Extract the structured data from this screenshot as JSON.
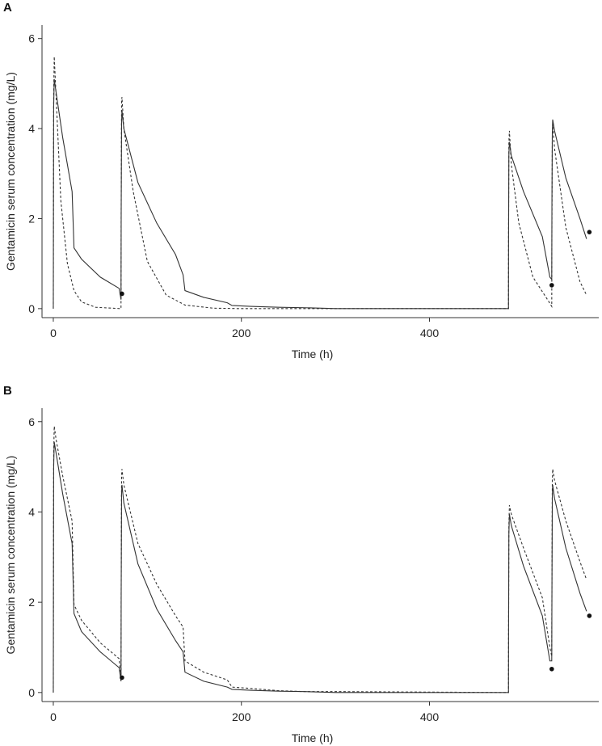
{
  "chart_data": [
    {
      "type": "line",
      "panel_label": "A",
      "xlabel": "Time (h)",
      "ylabel": "Gentamicin serum concentration (mg/L)",
      "xlim": [
        -12,
        580
      ],
      "ylim": [
        -0.2,
        6.3
      ],
      "xticks": [
        0,
        200,
        400
      ],
      "yticks": [
        0,
        2,
        4,
        6
      ],
      "series": [
        {
          "style": "solid",
          "x": [
            0,
            0.1,
            0.4,
            1,
            3,
            10,
            20,
            22,
            30,
            50,
            70,
            72,
            72.2,
            72.6,
            73,
            75,
            90,
            110,
            130,
            138,
            140,
            160,
            185,
            190,
            210,
            240,
            268,
            300,
            400,
            484,
            484.1,
            484.4,
            485,
            487,
            500,
            520,
            528,
            530,
            530.2,
            530.6,
            531,
            533,
            545,
            560,
            567
          ],
          "y": [
            0,
            1.3,
            4.5,
            5.1,
            4.8,
            3.8,
            2.6,
            1.35,
            1.1,
            0.7,
            0.45,
            0.2,
            2.2,
            4.1,
            4.4,
            4.0,
            2.8,
            1.9,
            1.2,
            0.75,
            0.4,
            0.25,
            0.13,
            0.07,
            0.05,
            0.03,
            0.02,
            0.0,
            0.0,
            0.0,
            1.5,
            3.4,
            3.7,
            3.4,
            2.6,
            1.6,
            0.7,
            0.65,
            2.3,
            3.9,
            4.2,
            3.95,
            2.9,
            2.0,
            1.55
          ]
        },
        {
          "style": "dashed",
          "x": [
            0,
            0.1,
            0.4,
            1,
            3,
            8,
            15,
            22,
            30,
            45,
            72,
            72.2,
            72.6,
            73,
            75,
            85,
            100,
            120,
            140,
            170,
            200,
            400,
            484,
            484.1,
            484.4,
            485,
            487,
            495,
            510,
            528,
            530,
            530.2,
            530.6,
            531,
            533,
            545,
            560,
            567
          ],
          "y": [
            0,
            1.5,
            4.8,
            5.6,
            4.7,
            2.4,
            1.0,
            0.4,
            0.15,
            0.03,
            0.0,
            2.5,
            4.6,
            4.7,
            4.0,
            2.6,
            1.05,
            0.3,
            0.08,
            0.01,
            0.0,
            0.0,
            0.0,
            1.7,
            3.7,
            3.95,
            3.2,
            1.9,
            0.7,
            0.12,
            0.05,
            2.0,
            3.8,
            4.1,
            3.55,
            1.8,
            0.6,
            0.3
          ]
        }
      ],
      "observations": {
        "x": [
          73,
          530,
          570
        ],
        "y": [
          0.33,
          0.52,
          1.7
        ]
      }
    },
    {
      "type": "line",
      "panel_label": "B",
      "xlabel": "Time (h)",
      "ylabel": "Gentamicin serum concentration (mg/L)",
      "xlim": [
        -12,
        580
      ],
      "ylim": [
        -0.2,
        6.3
      ],
      "xticks": [
        0,
        200,
        400
      ],
      "yticks": [
        0,
        2,
        4,
        6
      ],
      "series": [
        {
          "style": "solid",
          "x": [
            0,
            0.1,
            0.4,
            1,
            3,
            10,
            20,
            22,
            30,
            50,
            70,
            72,
            72.2,
            72.6,
            73,
            75,
            90,
            110,
            130,
            138,
            140,
            160,
            185,
            190,
            210,
            240,
            268,
            300,
            400,
            484,
            484.1,
            484.4,
            485,
            487,
            500,
            520,
            528,
            530,
            530.2,
            530.6,
            531,
            533,
            545,
            560,
            567
          ],
          "y": [
            0,
            1.4,
            5.0,
            5.55,
            5.3,
            4.4,
            3.3,
            1.75,
            1.35,
            0.9,
            0.55,
            0.25,
            2.3,
            4.4,
            4.6,
            4.2,
            2.85,
            1.85,
            1.15,
            0.9,
            0.45,
            0.25,
            0.12,
            0.07,
            0.05,
            0.03,
            0.02,
            0.0,
            0.0,
            0.0,
            1.3,
            3.5,
            3.95,
            3.7,
            2.8,
            1.7,
            0.7,
            0.7,
            2.2,
            4.3,
            4.6,
            4.3,
            3.2,
            2.2,
            1.8
          ]
        },
        {
          "style": "dashed",
          "x": [
            0,
            0.1,
            0.4,
            1,
            3,
            10,
            20,
            22,
            30,
            50,
            70,
            72,
            72.2,
            72.6,
            73,
            75,
            90,
            110,
            130,
            138,
            140,
            160,
            185,
            190,
            210,
            240,
            268,
            300,
            305,
            484,
            484.1,
            484.4,
            485,
            487,
            500,
            520,
            528,
            530,
            530.2,
            530.6,
            531,
            533,
            545,
            560,
            567
          ],
          "y": [
            0,
            1.5,
            5.3,
            5.9,
            5.6,
            4.8,
            3.8,
            1.95,
            1.6,
            1.1,
            0.75,
            0.3,
            2.5,
            4.8,
            4.95,
            4.6,
            3.3,
            2.4,
            1.7,
            1.45,
            0.7,
            0.45,
            0.28,
            0.12,
            0.09,
            0.04,
            0.02,
            0.02,
            0.02,
            0.0,
            1.3,
            3.7,
            4.15,
            3.95,
            3.2,
            2.1,
            1.0,
            0.8,
            2.4,
            4.7,
            4.95,
            4.7,
            3.8,
            2.9,
            2.5
          ]
        }
      ],
      "observations": {
        "x": [
          73,
          530,
          570
        ],
        "y": [
          0.33,
          0.52,
          1.7
        ]
      }
    }
  ]
}
